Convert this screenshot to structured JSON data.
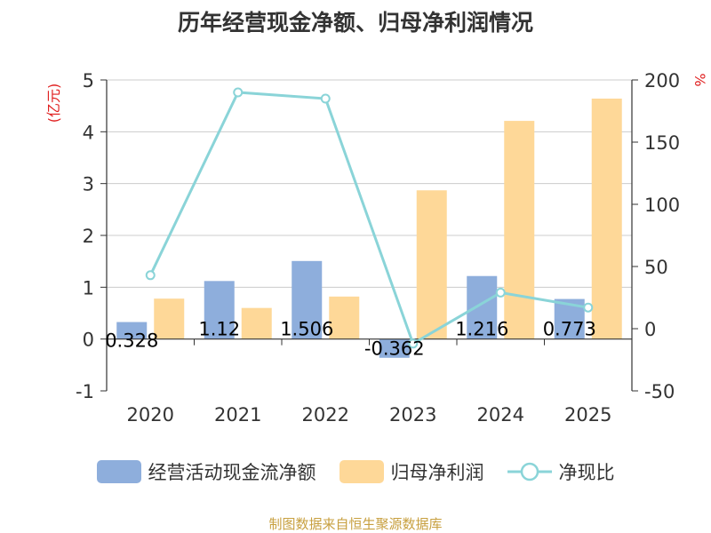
{
  "chart_data": {
    "type": "bar",
    "title": "历年经营现金净额、归母净利润情况",
    "categories": [
      "2020",
      "2021",
      "2022",
      "2023",
      "2024",
      "2025"
    ],
    "series": [
      {
        "name": "经营活动现金流净额",
        "type": "bar",
        "axis": "left",
        "color": "#8eaedc",
        "values": [
          0.328,
          1.12,
          1.506,
          -0.362,
          1.216,
          0.773
        ],
        "labels": [
          "0.328",
          "1.12",
          "1.506",
          "-0.362",
          "1.216",
          "0.773"
        ]
      },
      {
        "name": "归母净利润",
        "type": "bar",
        "axis": "left",
        "color": "#fed898",
        "values": [
          0.78,
          0.6,
          0.82,
          2.87,
          4.21,
          4.64
        ]
      },
      {
        "name": "净现比",
        "type": "line",
        "axis": "right",
        "color": "#8ad4d8",
        "values": [
          43,
          190,
          185,
          -12,
          29,
          17
        ]
      }
    ],
    "y_left": {
      "label": "(亿元)",
      "min": -1,
      "max": 5,
      "ticks": [
        "5",
        "4",
        "3",
        "2",
        "1",
        "0",
        "-1"
      ]
    },
    "y_right": {
      "label": "%",
      "min": -50,
      "max": 200,
      "ticks": [
        "200",
        "150",
        "100",
        "50",
        "0",
        "-50"
      ]
    },
    "grid": true,
    "legend_position": "bottom"
  },
  "source": "制图数据来自恒生聚源数据库"
}
